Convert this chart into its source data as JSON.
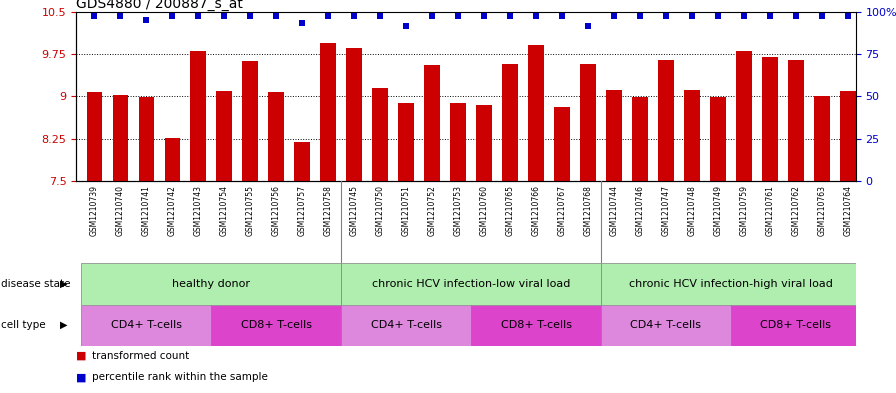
{
  "title": "GDS4880 / 200887_s_at",
  "samples": [
    "GSM1210739",
    "GSM1210740",
    "GSM1210741",
    "GSM1210742",
    "GSM1210743",
    "GSM1210754",
    "GSM1210755",
    "GSM1210756",
    "GSM1210757",
    "GSM1210758",
    "GSM1210745",
    "GSM1210750",
    "GSM1210751",
    "GSM1210752",
    "GSM1210753",
    "GSM1210760",
    "GSM1210765",
    "GSM1210766",
    "GSM1210767",
    "GSM1210768",
    "GSM1210744",
    "GSM1210746",
    "GSM1210747",
    "GSM1210748",
    "GSM1210749",
    "GSM1210759",
    "GSM1210761",
    "GSM1210762",
    "GSM1210763",
    "GSM1210764"
  ],
  "bar_values": [
    9.07,
    9.02,
    8.99,
    8.26,
    9.8,
    9.09,
    9.63,
    9.08,
    8.18,
    9.94,
    9.85,
    9.14,
    8.88,
    9.56,
    8.88,
    8.84,
    9.57,
    9.91,
    8.81,
    9.58,
    9.12,
    8.98,
    9.65,
    9.12,
    8.98,
    9.8,
    9.69,
    9.65,
    9.01,
    9.09
  ],
  "percentile_values": [
    10.43,
    10.43,
    10.35,
    10.43,
    10.43,
    10.43,
    10.43,
    10.43,
    10.3,
    10.43,
    10.43,
    10.43,
    10.24,
    10.43,
    10.43,
    10.43,
    10.43,
    10.43,
    10.43,
    10.24,
    10.43,
    10.43,
    10.43,
    10.43,
    10.43,
    10.43,
    10.43,
    10.43,
    10.43,
    10.43
  ],
  "ylim_left": [
    7.5,
    10.5
  ],
  "ylim_right": [
    0,
    100
  ],
  "yticks_left": [
    7.5,
    8.25,
    9.0,
    9.75,
    10.5
  ],
  "ytick_labels_left": [
    "7.5",
    "8.25",
    "9",
    "9.75",
    "10.5"
  ],
  "yticks_right": [
    0,
    25,
    50,
    75,
    100
  ],
  "ytick_labels_right": [
    "0",
    "25",
    "50",
    "75",
    "100%"
  ],
  "bar_color": "#CC0000",
  "dot_color": "#0000CC",
  "disease_groups": [
    {
      "label": "healthy donor",
      "start": 0,
      "end": 9,
      "color": "#b0eeb0"
    },
    {
      "label": "chronic HCV infection-low viral load",
      "start": 10,
      "end": 19,
      "color": "#b0eeb0"
    },
    {
      "label": "chronic HCV infection-high viral load",
      "start": 20,
      "end": 29,
      "color": "#b0eeb0"
    }
  ],
  "cell_type_groups": [
    {
      "label": "CD4+ T-cells",
      "start": 0,
      "end": 4
    },
    {
      "label": "CD8+ T-cells",
      "start": 5,
      "end": 9
    },
    {
      "label": "CD4+ T-cells",
      "start": 10,
      "end": 14
    },
    {
      "label": "CD8+ T-cells",
      "start": 15,
      "end": 19
    },
    {
      "label": "CD4+ T-cells",
      "start": 20,
      "end": 24
    },
    {
      "label": "CD8+ T-cells",
      "start": 25,
      "end": 29
    }
  ],
  "cell_color_cd4": "#dd88dd",
  "cell_color_cd8": "#dd44cc",
  "disease_state_label": "disease state",
  "cell_type_label": "cell type",
  "legend_bar_label": "transformed count",
  "legend_dot_label": "percentile rank within the sample",
  "grid_yticks": [
    8.25,
    9.0,
    9.75
  ],
  "sample_bg_color": "#d0d0d0",
  "xlim_min": -0.7,
  "xlim_max": 29.3
}
